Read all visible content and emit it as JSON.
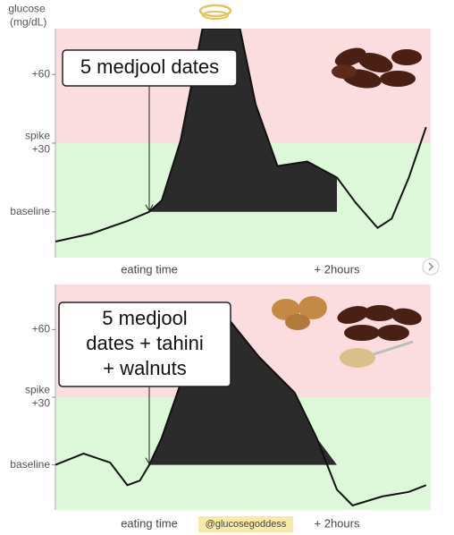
{
  "chart_data": [
    {
      "type": "line",
      "y_label": "glucose (mg/dL)",
      "callout": [
        "5 medjool dates"
      ],
      "x": [
        -60,
        -37,
        -14,
        0,
        8,
        20,
        34,
        58,
        68,
        82,
        101,
        120,
        132,
        146,
        155,
        166,
        177
      ],
      "values": [
        -13,
        -9.5,
        -4,
        0,
        5,
        31,
        80,
        80,
        47,
        20,
        22,
        15,
        4,
        -7,
        -3,
        15,
        37
      ],
      "color": "#111111",
      "xlim": [
        -60,
        180
      ],
      "xticks": [
        {
          "value": 0,
          "label": "eating time"
        },
        {
          "value": 120,
          "label": "+ 2hours"
        }
      ],
      "ylim": [
        -20,
        80
      ],
      "yticks": [
        {
          "value": 0,
          "label": "baseline"
        },
        {
          "value": 30,
          "label": "spike +30"
        },
        {
          "value": 60,
          "label": "+60"
        }
      ]
    },
    {
      "type": "line",
      "callout": [
        "5 medjool",
        "dates + tahini",
        "+ walnuts"
      ],
      "watermark": "@glucosegoddess",
      "x": [
        -60,
        -42,
        -25,
        -14,
        -6,
        0,
        8,
        22,
        39,
        48,
        70,
        93,
        107,
        120,
        130,
        149,
        166,
        177
      ],
      "values": [
        0,
        5,
        1,
        -9,
        -7,
        0,
        12,
        40,
        68,
        67,
        48,
        32,
        12,
        -11,
        -18,
        -14,
        -12,
        -9
      ],
      "color": "#111111",
      "xlim": [
        -60,
        180
      ],
      "xticks": [
        {
          "value": 0,
          "label": "eating time"
        },
        {
          "value": 120,
          "label": "+ 2hours"
        }
      ],
      "ylim": [
        -20,
        80
      ],
      "yticks": [
        {
          "value": 0,
          "label": "baseline"
        },
        {
          "value": 30,
          "label": "spike +30"
        },
        {
          "value": 60,
          "label": "+60"
        }
      ]
    }
  ]
}
